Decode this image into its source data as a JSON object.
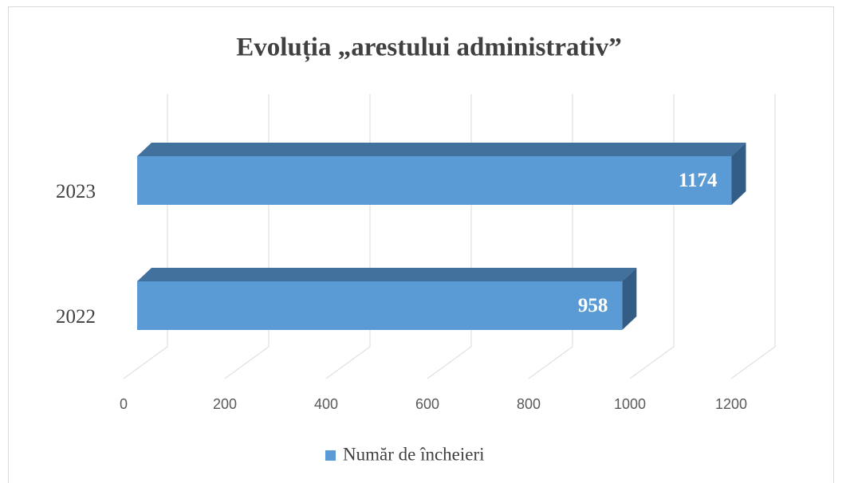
{
  "chart_data": {
    "type": "bar",
    "orientation": "horizontal",
    "three_d": true,
    "title": "Evoluția „arestului administrativ”",
    "categories": [
      "2022",
      "2023"
    ],
    "series": [
      {
        "name": "Număr de încheieri",
        "color": "#5b9bd5",
        "values": [
          958,
          1174
        ]
      }
    ],
    "xlim": [
      0,
      1200
    ],
    "xticks": [
      0,
      200,
      400,
      600,
      800,
      1000,
      1200
    ],
    "grid": true,
    "legend": "bottom",
    "data_labels": true
  }
}
